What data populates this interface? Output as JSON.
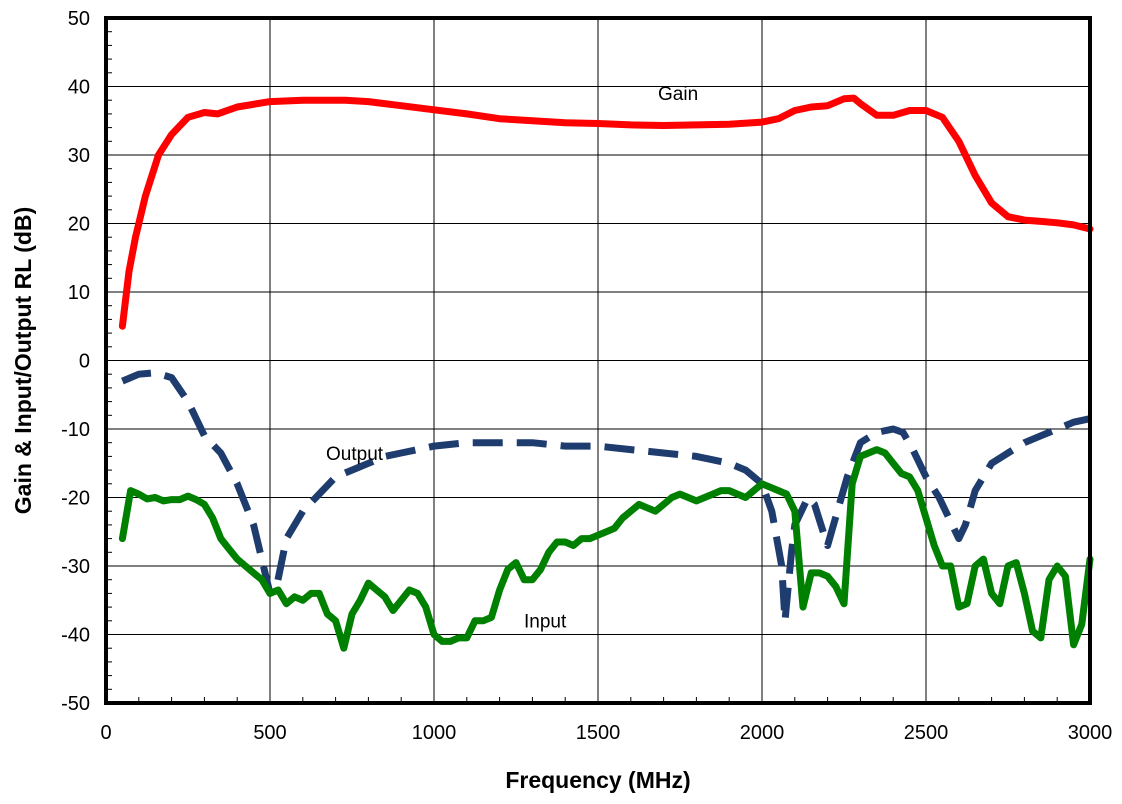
{
  "chart_data": {
    "type": "line",
    "title": "",
    "xlabel": "Frequency (MHz)",
    "ylabel": "Gain & Input/Output RL (dB)",
    "xlim": [
      0,
      3000
    ],
    "ylim": [
      -50,
      50
    ],
    "xticks": [
      0,
      500,
      1000,
      1500,
      2000,
      2500,
      3000
    ],
    "yticks": [
      -50,
      -40,
      -30,
      -20,
      -10,
      0,
      10,
      20,
      30,
      40,
      50
    ],
    "grid": true,
    "legend": "none",
    "series": [
      {
        "name": "Gain",
        "color": "#ff0000",
        "style": "solid",
        "label_at": [
          1730,
          38
        ],
        "x": [
          50,
          70,
          90,
          120,
          160,
          200,
          250,
          300,
          340,
          400,
          500,
          600,
          700,
          730,
          800,
          900,
          1000,
          1100,
          1200,
          1300,
          1400,
          1500,
          1600,
          1700,
          1800,
          1900,
          2000,
          2050,
          2100,
          2150,
          2200,
          2250,
          2280,
          2300,
          2350,
          2400,
          2450,
          2500,
          2550,
          2600,
          2650,
          2700,
          2750,
          2800,
          2850,
          2900,
          2950,
          3000
        ],
        "y": [
          5,
          13,
          18,
          24,
          30,
          33,
          35.5,
          36.2,
          36,
          37,
          37.8,
          38,
          38,
          38,
          37.8,
          37.2,
          36.6,
          36,
          35.3,
          35,
          34.7,
          34.6,
          34.4,
          34.3,
          34.4,
          34.5,
          34.8,
          35.3,
          36.5,
          37,
          37.2,
          38.2,
          38.3,
          37.5,
          35.8,
          35.8,
          36.5,
          36.5,
          35.5,
          32,
          27,
          23,
          21,
          20.5,
          20.3,
          20.1,
          19.8,
          19.2
        ]
      },
      {
        "name": "Output",
        "color": "#1f3c6e",
        "style": "dashed",
        "label_at": [
          950,
          -14.5
        ],
        "x": [
          50,
          100,
          150,
          200,
          250,
          300,
          350,
          400,
          450,
          480,
          500,
          520,
          550,
          600,
          650,
          700,
          750,
          800,
          850,
          900,
          950,
          1000,
          1100,
          1200,
          1300,
          1400,
          1500,
          1600,
          1700,
          1800,
          1850,
          1900,
          1950,
          2000,
          2030,
          2060,
          2070,
          2080,
          2090,
          2100,
          2120,
          2140,
          2160,
          2180,
          2200,
          2230,
          2260,
          2300,
          2350,
          2400,
          2430,
          2460,
          2500,
          2540,
          2580,
          2600,
          2620,
          2650,
          2700,
          2750,
          2800,
          2850,
          2900,
          2950,
          3000
        ],
        "y": [
          -3,
          -2,
          -1.8,
          -2.5,
          -6,
          -11,
          -13.5,
          -18,
          -24,
          -30,
          -34,
          -33,
          -26,
          -22,
          -19.5,
          -17,
          -16,
          -15,
          -14,
          -13.5,
          -13,
          -12.5,
          -12,
          -12,
          -12,
          -12.5,
          -12.5,
          -13,
          -13.5,
          -14,
          -14.5,
          -15,
          -16,
          -18,
          -22,
          -30,
          -38,
          -33,
          -28,
          -24,
          -22,
          -20,
          -21,
          -24,
          -27,
          -22,
          -17,
          -12,
          -10.5,
          -10,
          -10.5,
          -13,
          -17,
          -20,
          -24,
          -26,
          -24,
          -19,
          -15,
          -13.5,
          -12,
          -11,
          -10,
          -9,
          -8.5
        ]
      },
      {
        "name": "Input",
        "color": "#008000",
        "style": "solid",
        "label_at": [
          1250,
          -39
        ],
        "x": [
          50,
          75,
          100,
          125,
          150,
          175,
          200,
          225,
          250,
          275,
          300,
          325,
          350,
          375,
          400,
          425,
          450,
          475,
          500,
          525,
          550,
          575,
          600,
          625,
          650,
          675,
          700,
          725,
          750,
          775,
          800,
          825,
          850,
          875,
          900,
          925,
          950,
          975,
          1000,
          1025,
          1050,
          1075,
          1100,
          1125,
          1150,
          1175,
          1200,
          1225,
          1250,
          1275,
          1300,
          1325,
          1350,
          1375,
          1400,
          1425,
          1450,
          1475,
          1500,
          1525,
          1550,
          1575,
          1600,
          1625,
          1650,
          1675,
          1700,
          1725,
          1750,
          1775,
          1800,
          1825,
          1850,
          1875,
          1900,
          1925,
          1950,
          1975,
          2000,
          2025,
          2050,
          2075,
          2100,
          2125,
          2150,
          2175,
          2200,
          2225,
          2250,
          2275,
          2300,
          2325,
          2350,
          2375,
          2400,
          2425,
          2450,
          2475,
          2500,
          2525,
          2550,
          2575,
          2600,
          2625,
          2650,
          2675,
          2700,
          2725,
          2750,
          2775,
          2800,
          2825,
          2850,
          2875,
          2900,
          2925,
          2950,
          2975,
          3000
        ],
        "y": [
          -26,
          -19,
          -19.5,
          -20.2,
          -20,
          -20.5,
          -20.3,
          -20.3,
          -19.8,
          -20.3,
          -21,
          -23,
          -26,
          -27.5,
          -29,
          -30,
          -31,
          -32,
          -34,
          -33.5,
          -35.5,
          -34.5,
          -35,
          -34,
          -34,
          -37,
          -38,
          -42,
          -37,
          -35,
          -32.5,
          -33.5,
          -34.5,
          -36.5,
          -35,
          -33.5,
          -34,
          -36,
          -40,
          -41,
          -41,
          -40.5,
          -40.5,
          -38,
          -38,
          -37.5,
          -33.5,
          -30.5,
          -29.5,
          -32,
          -32,
          -30.5,
          -28,
          -26.5,
          -26.5,
          -27,
          -26,
          -26,
          -25.5,
          -25,
          -24.5,
          -23,
          -22,
          -21,
          -21.5,
          -22,
          -21,
          -20,
          -19.5,
          -20,
          -20.5,
          -20,
          -19.5,
          -19,
          -19,
          -19.5,
          -20,
          -19,
          -18,
          -18.5,
          -19,
          -19.5,
          -22,
          -36,
          -31,
          -31,
          -31.5,
          -33,
          -35.5,
          -18,
          -14,
          -13.5,
          -13,
          -13.5,
          -15,
          -16.5,
          -17,
          -19,
          -23,
          -27,
          -30,
          -30,
          -36,
          -35.5,
          -30,
          -29,
          -34,
          -35.5,
          -30,
          -29.5,
          -34,
          -39.5,
          -40.5,
          -32,
          -30,
          -31.5,
          -41.5,
          -38.5,
          -29
        ]
      }
    ]
  }
}
